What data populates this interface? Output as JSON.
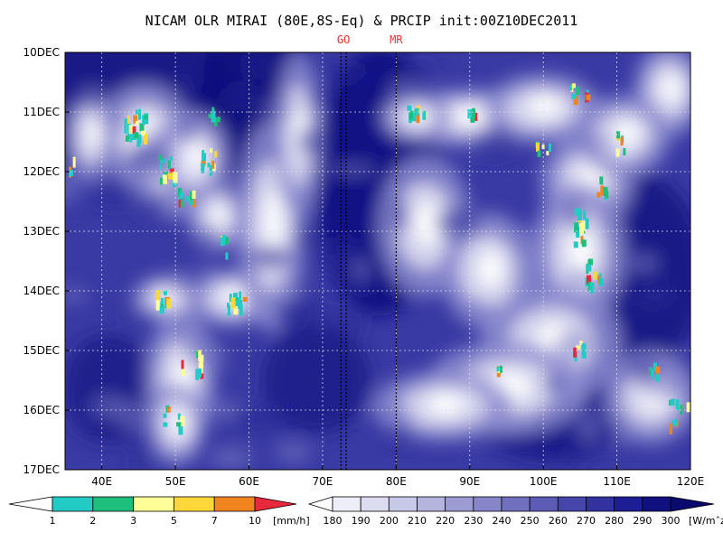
{
  "chart_data": {
    "type": "heatmap",
    "title": "NICAM OLR MIRAI (80E,8S-Eq) & PRCIP init:00Z10DEC2011",
    "xlabel": "",
    "ylabel": "",
    "x_ticks": [
      "40E",
      "50E",
      "60E",
      "70E",
      "80E",
      "90E",
      "100E",
      "110E",
      "120E"
    ],
    "x_tick_values": [
      40,
      50,
      60,
      70,
      80,
      90,
      100,
      110,
      120
    ],
    "xlim": [
      35,
      120
    ],
    "y_ticks": [
      "10DEC",
      "11DEC",
      "12DEC",
      "13DEC",
      "14DEC",
      "15DEC",
      "16DEC",
      "17DEC"
    ],
    "y_tick_values": [
      0,
      1,
      2,
      3,
      4,
      5,
      6,
      7
    ],
    "ylim": [
      0,
      7
    ],
    "grid": true,
    "markers": [
      {
        "label": "GO",
        "x": [
          72.5,
          73.2
        ]
      },
      {
        "label": "MR",
        "x": [
          80
        ]
      }
    ],
    "olr_colorbar": {
      "levels": [
        "180",
        "190",
        "200",
        "210",
        "220",
        "230",
        "240",
        "250",
        "260",
        "270",
        "280",
        "290",
        "300"
      ],
      "unit": "[W/mˆz2]",
      "colors": [
        "#ffffff",
        "#eeeef8",
        "#dcdcf0",
        "#c8c8e8",
        "#b4b4dc",
        "#9c9cd2",
        "#8686c8",
        "#7070be",
        "#5c5cb4",
        "#4646aa",
        "#3232a0",
        "#1e1e94",
        "#101080",
        "#0a0a6e"
      ]
    },
    "precip_colorbar": {
      "levels": [
        "1",
        "2",
        "3",
        "5",
        "7",
        "10"
      ],
      "unit": "[mm/h]",
      "colors": [
        "#ffffff",
        "#22ccc4",
        "#1ebf7c",
        "#ffff9a",
        "#fdd838",
        "#f0841e",
        "#e8283c"
      ]
    }
  }
}
